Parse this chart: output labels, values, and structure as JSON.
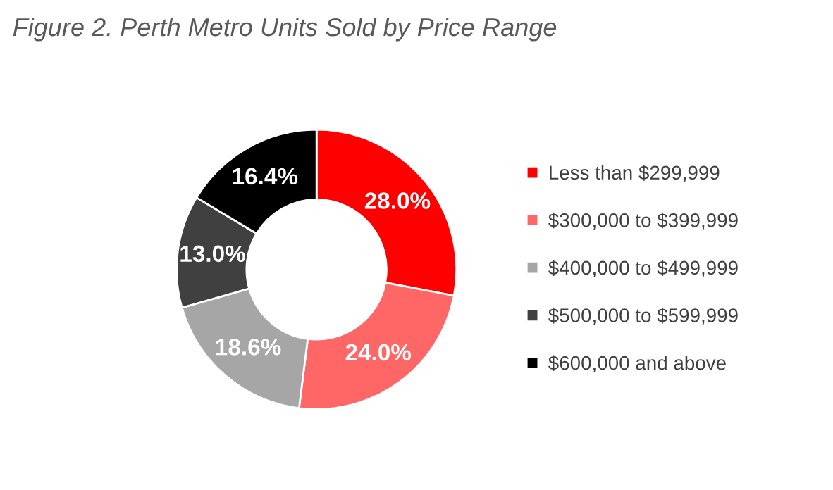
{
  "chart_data": {
    "type": "donut",
    "title": "Figure 2. Perth Metro Units Sold by Price Range",
    "categories": [
      "Less than $299,999",
      "$300,000 to $399,999",
      "$400,000 to $499,999",
      "$500,000 to $599,999",
      "$600,000 and above"
    ],
    "values": [
      28.0,
      24.0,
      18.6,
      13.0,
      16.4
    ],
    "value_labels": [
      "28.0%",
      "24.0%",
      "18.6%",
      "13.0%",
      "16.4%"
    ],
    "colors": [
      "#ff0000",
      "#ff6666",
      "#a6a6a6",
      "#404040",
      "#000000"
    ],
    "legend": "right"
  }
}
